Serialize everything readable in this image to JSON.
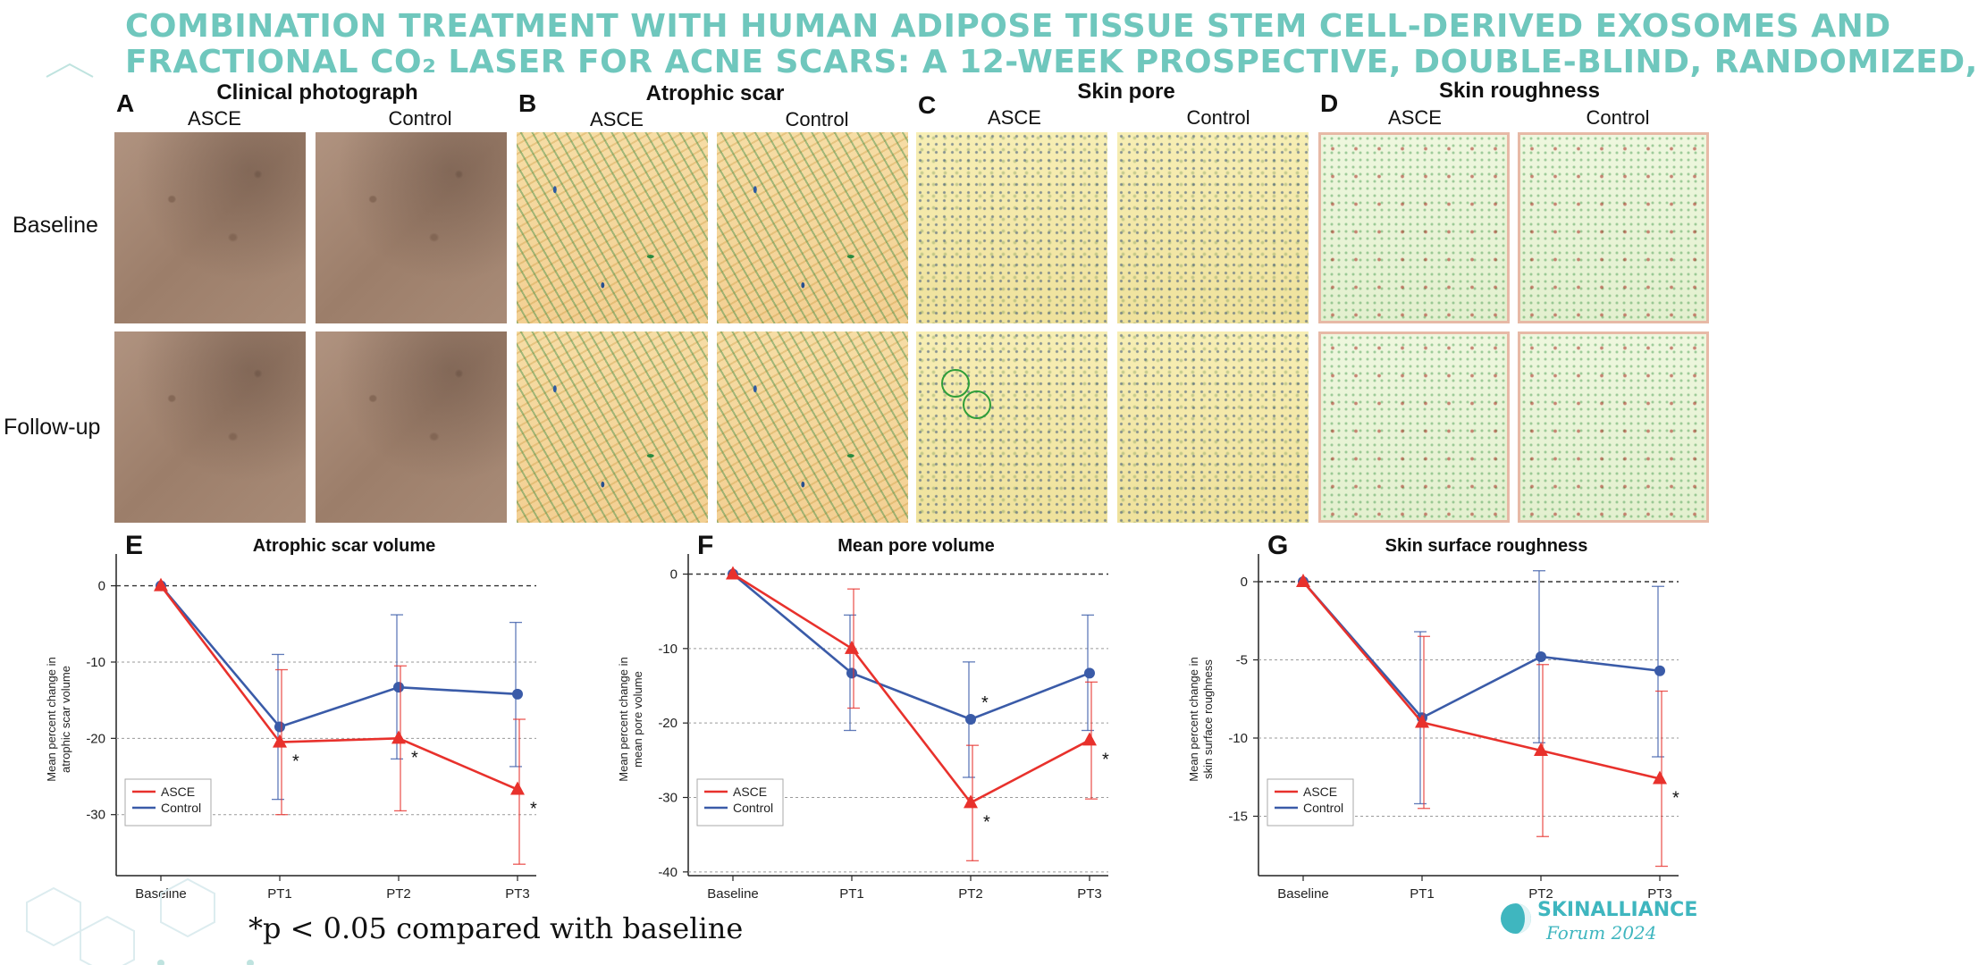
{
  "slide": {
    "title_line1": "COMBINATION TREATMENT WITH HUMAN ADIPOSE TISSUE STEM CELL-DERIVED EXOSOMES AND",
    "title_line2": "FRACTIONAL CO₂ LASER FOR ACNE SCARS: A 12-WEEK PROSPECTIVE, DOUBLE-BLIND, RANDOMIZED,",
    "footnote": "*p < 0.05 compared with baseline",
    "logo_text": "SKINALLIANCE",
    "logo_sub": "Forum 2024"
  },
  "image_panels": {
    "row_labels": [
      "Baseline",
      "Follow-up"
    ],
    "panels": [
      {
        "letter": "A",
        "title": "Clinical photograph",
        "col_labels": [
          "ASCE",
          "Control"
        ]
      },
      {
        "letter": "B",
        "title": "Atrophic scar",
        "col_labels": [
          "ASCE",
          "Control"
        ]
      },
      {
        "letter": "C",
        "title": "Skin pore",
        "col_labels": [
          "ASCE",
          "Control"
        ]
      },
      {
        "letter": "D",
        "title": "Skin roughness",
        "col_labels": [
          "ASCE",
          "Control"
        ]
      }
    ]
  },
  "colors": {
    "asce": "#e8312c",
    "control": "#3a5ba8",
    "title": "#6fc7bd"
  },
  "chart_data": [
    {
      "type": "line",
      "letter": "E",
      "title": "Atrophic scar volume",
      "ylabel": "Mean percent change in atrophic scar volume",
      "x": [
        "Baseline",
        "PT1",
        "PT2",
        "PT3"
      ],
      "ylim": [
        -38,
        3
      ],
      "yticks": [
        0,
        -10,
        -20,
        -30
      ],
      "series": [
        {
          "name": "ASCE",
          "values": [
            0,
            -20.5,
            -20,
            -26.7
          ],
          "err_low": [
            0,
            -30,
            -29.5,
            -36.5
          ],
          "err_high": [
            0,
            -11,
            -10.5,
            -17.5
          ],
          "marks": [
            "",
            "*",
            "*",
            "*"
          ]
        },
        {
          "name": "Control",
          "values": [
            0,
            -18.5,
            -13.3,
            -14.2
          ],
          "err_low": [
            0,
            -28,
            -22.7,
            -23.7
          ],
          "err_high": [
            0,
            -9,
            -3.8,
            -4.8
          ]
        }
      ],
      "legend": "bottom-left",
      "grid": "dashed-horizontal"
    },
    {
      "type": "line",
      "letter": "F",
      "title": "Mean pore volume",
      "ylabel": "Mean percent change in mean pore volume",
      "x": [
        "Baseline",
        "PT1",
        "PT2",
        "PT3"
      ],
      "ylim": [
        -40.5,
        1.5
      ],
      "yticks": [
        0,
        -10,
        -20,
        -30,
        -40
      ],
      "series": [
        {
          "name": "ASCE",
          "values": [
            0,
            -10,
            -30.7,
            -22.3
          ],
          "err_low": [
            0,
            -18,
            -38.5,
            -30.2
          ],
          "err_high": [
            0,
            -2,
            -23,
            -14.5
          ],
          "marks": [
            "",
            "",
            "*",
            "*"
          ]
        },
        {
          "name": "Control",
          "values": [
            0,
            -13.3,
            -19.5,
            -13.3
          ],
          "err_low": [
            0,
            -21,
            -27.3,
            -21
          ],
          "err_high": [
            0,
            -5.5,
            -11.8,
            -5.5
          ],
          "marks": [
            "",
            "",
            "*",
            ""
          ]
        }
      ],
      "legend": "bottom-left",
      "grid": "dashed-horizontal"
    },
    {
      "type": "line",
      "letter": "G",
      "title": "Skin surface roughness",
      "ylabel": "Mean percent change in skin surface roughness",
      "x": [
        "Baseline",
        "PT1",
        "PT2",
        "PT3"
      ],
      "ylim": [
        -18.8,
        1.2
      ],
      "yticks": [
        0,
        -5,
        -10,
        -15
      ],
      "series": [
        {
          "name": "ASCE",
          "values": [
            0,
            -9,
            -10.8,
            -12.6
          ],
          "err_low": [
            0,
            -14.5,
            -16.3,
            -18.2
          ],
          "err_high": [
            0,
            -3.5,
            -5.3,
            -7
          ],
          "marks": [
            "",
            "",
            "",
            "*"
          ]
        },
        {
          "name": "Control",
          "values": [
            0,
            -8.7,
            -4.8,
            -5.7
          ],
          "err_low": [
            0,
            -14.2,
            -10.3,
            -11.2
          ],
          "err_high": [
            0,
            -3.2,
            0.7,
            -0.3
          ]
        }
      ],
      "legend": "bottom-left",
      "grid": "dashed-horizontal"
    }
  ]
}
